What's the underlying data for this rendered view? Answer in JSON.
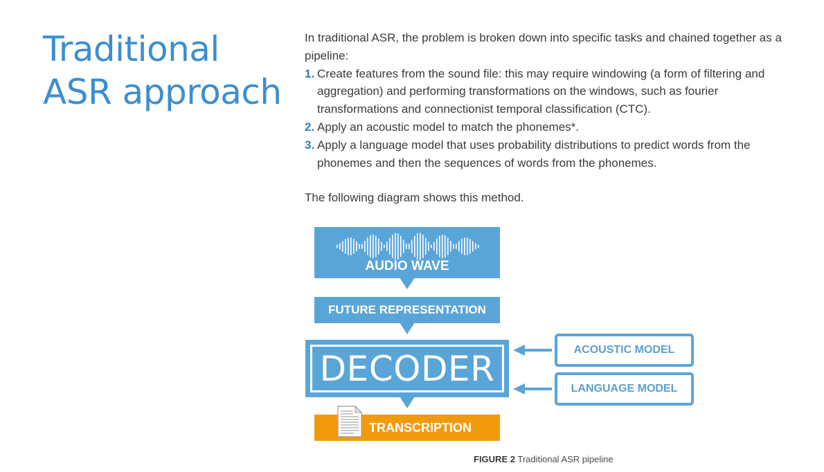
{
  "title": {
    "line1": "Traditional",
    "line2": "ASR approach"
  },
  "intro": "In traditional ASR, the problem is broken down into specific tasks and chained together as a pipeline:",
  "steps": [
    {
      "number": "1.",
      "text": "Create features from the sound file: this may require windowing (a form of filtering and aggregation) and performing transformations on the windows, such as fourier transformations and connectionist temporal classification (CTC)."
    },
    {
      "number": "2.",
      "text": "Apply an acoustic model to match the phonemes*."
    },
    {
      "number": "3.",
      "text": "Apply a language model that uses probability distributions to predict words from the phonemes and then the sequences of words from the phonemes."
    }
  ],
  "closing": "The following diagram shows this method.",
  "diagram": {
    "audio_wave": "AUDIO WAVE",
    "future_representation": "FUTURE REPRESENTATION",
    "decoder": "DECODER",
    "acoustic_model": "ACOUSTIC MODEL",
    "language_model": "LANGUAGE MODEL",
    "transcription": "TRANSCRIPTION",
    "colors": {
      "blue": "#5aa5d8",
      "orange": "#f29a0e",
      "title_blue": "#3b8ed1"
    },
    "icons": [
      "waveform-icon",
      "document-icon"
    ]
  },
  "caption": {
    "label": "FIGURE 2",
    "text": "Traditional ASR pipeline"
  }
}
